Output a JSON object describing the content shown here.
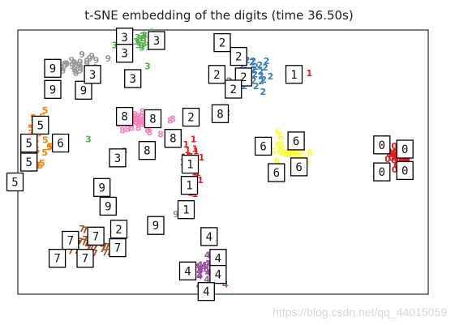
{
  "chart_data": {
    "type": "scatter",
    "title": "t-SNE embedding of the digits (time 36.50s)",
    "xlabel": "",
    "ylabel": "",
    "xlim": [
      0,
      100
    ],
    "ylim": [
      0,
      100
    ],
    "ticks": "none",
    "grid": false,
    "legend": "none",
    "clusters": [
      {
        "label": "0",
        "color": "#e41a1c",
        "center": [
          92.4,
          51.8
        ],
        "spread": [
          3.0,
          5.0
        ],
        "count": 36
      },
      {
        "label": "1",
        "color": "#e41a1c",
        "center": [
          42.3,
          48.0
        ],
        "spread": [
          1.8,
          8.0
        ],
        "count": 30
      },
      {
        "label": "2",
        "color": "#377eb8",
        "center": [
          56.6,
          83.2
        ],
        "spread": [
          4.0,
          4.5
        ],
        "count": 32
      },
      {
        "label": "3",
        "color": "#4daf4a",
        "center": [
          30.6,
          95.5
        ],
        "spread": [
          4.5,
          2.3
        ],
        "count": 24
      },
      {
        "label": "4",
        "color": "#984ea3",
        "center": [
          46.8,
          9.3
        ],
        "spread": [
          4.0,
          4.5
        ],
        "count": 30
      },
      {
        "label": "5",
        "color": "#ff7f00",
        "center": [
          5.3,
          56.0
        ],
        "spread": [
          2.0,
          9.0
        ],
        "count": 30
      },
      {
        "label": "6",
        "color": "#ffff33",
        "center": [
          66.9,
          54.1
        ],
        "spread": [
          4.0,
          4.5
        ],
        "count": 30
      },
      {
        "label": "7",
        "color": "#a65628",
        "center": [
          17.2,
          19.0
        ],
        "spread": [
          5.0,
          4.0
        ],
        "count": 30
      },
      {
        "label": "8",
        "color": "#f781bf",
        "center": [
          30.6,
          64.3
        ],
        "spread": [
          5.5,
          3.5
        ],
        "count": 32
      },
      {
        "label": "9",
        "color": "#999999",
        "center": [
          14.0,
          86.7
        ],
        "spread": [
          4.5,
          3.0
        ],
        "count": 26
      }
    ],
    "stray_labels": [
      {
        "label": "1",
        "color": "#e41a1c",
        "x": 71.0,
        "y": 83.5
      },
      {
        "label": "5",
        "color": "#ff7f00",
        "x": 4.5,
        "y": 66.0
      },
      {
        "label": "3",
        "color": "#4daf4a",
        "x": 17.2,
        "y": 58.5
      },
      {
        "label": "3",
        "color": "#4daf4a",
        "x": 26.0,
        "y": 54.0
      },
      {
        "label": "3",
        "color": "#4daf4a",
        "x": 31.6,
        "y": 86.0
      },
      {
        "label": "9",
        "color": "#999999",
        "x": 22.0,
        "y": 89.0
      },
      {
        "label": "9",
        "color": "#999999",
        "x": 38.5,
        "y": 30.0
      },
      {
        "label": "2",
        "color": "#377eb8",
        "x": 51.0,
        "y": 68.5
      },
      {
        "label": "8",
        "color": "#f781bf",
        "x": 37.0,
        "y": 58.0
      }
    ],
    "thumbnails": [
      {
        "digit": "3",
        "x": 26.0,
        "y": 97.3
      },
      {
        "digit": "3",
        "x": 33.8,
        "y": 96.0
      },
      {
        "digit": "3",
        "x": 26.0,
        "y": 91.2
      },
      {
        "digit": "3",
        "x": 28.0,
        "y": 81.6
      },
      {
        "digit": "9",
        "x": 8.5,
        "y": 85.5
      },
      {
        "digit": "9",
        "x": 8.5,
        "y": 77.5
      },
      {
        "digit": "9",
        "x": 16.0,
        "y": 77.2
      },
      {
        "digit": "3",
        "x": 18.2,
        "y": 83.2
      },
      {
        "digit": "2",
        "x": 49.8,
        "y": 95.2
      },
      {
        "digit": "2",
        "x": 53.8,
        "y": 90.0
      },
      {
        "digit": "2",
        "x": 48.5,
        "y": 83.2
      },
      {
        "digit": "2",
        "x": 55.0,
        "y": 82.2
      },
      {
        "digit": "2",
        "x": 52.5,
        "y": 77.6
      },
      {
        "digit": "1",
        "x": 67.3,
        "y": 83.2
      },
      {
        "digit": "8",
        "x": 26.0,
        "y": 67.3
      },
      {
        "digit": "8",
        "x": 32.9,
        "y": 66.4
      },
      {
        "digit": "2",
        "x": 42.2,
        "y": 67.0
      },
      {
        "digit": "8",
        "x": 49.3,
        "y": 68.3
      },
      {
        "digit": "8",
        "x": 37.8,
        "y": 59.0
      },
      {
        "digit": "8",
        "x": 31.5,
        "y": 54.4
      },
      {
        "digit": "3",
        "x": 24.3,
        "y": 51.6
      },
      {
        "digit": "5",
        "x": 5.5,
        "y": 64.0
      },
      {
        "digit": "5",
        "x": 2.7,
        "y": 57.2
      },
      {
        "digit": "6",
        "x": 10.4,
        "y": 57.2
      },
      {
        "digit": "5",
        "x": 2.7,
        "y": 50.0
      },
      {
        "digit": "5",
        "x": -0.7,
        "y": 42.5
      },
      {
        "digit": "6",
        "x": 59.8,
        "y": 56.0
      },
      {
        "digit": "6",
        "x": 67.8,
        "y": 58.0
      },
      {
        "digit": "6",
        "x": 68.5,
        "y": 48.2
      },
      {
        "digit": "6",
        "x": 63.0,
        "y": 46.0
      },
      {
        "digit": "0",
        "x": 88.7,
        "y": 56.5
      },
      {
        "digit": "0",
        "x": 94.3,
        "y": 54.9
      },
      {
        "digit": "0",
        "x": 88.7,
        "y": 46.3
      },
      {
        "digit": "0",
        "x": 94.3,
        "y": 46.8
      },
      {
        "digit": "1",
        "x": 42.0,
        "y": 49.2
      },
      {
        "digit": "1",
        "x": 41.8,
        "y": 41.2
      },
      {
        "digit": "1",
        "x": 41.0,
        "y": 32.0
      },
      {
        "digit": "9",
        "x": 20.5,
        "y": 40.4
      },
      {
        "digit": "9",
        "x": 22.0,
        "y": 33.3
      },
      {
        "digit": "2",
        "x": 24.6,
        "y": 24.6
      },
      {
        "digit": "7",
        "x": 19.0,
        "y": 22.0
      },
      {
        "digit": "7",
        "x": 12.8,
        "y": 20.4
      },
      {
        "digit": "7",
        "x": 24.3,
        "y": 17.6
      },
      {
        "digit": "7",
        "x": 9.6,
        "y": 13.6
      },
      {
        "digit": "7",
        "x": 16.4,
        "y": 13.6
      },
      {
        "digit": "9",
        "x": 33.6,
        "y": 26.0
      },
      {
        "digit": "4",
        "x": 46.6,
        "y": 21.8
      },
      {
        "digit": "4",
        "x": 48.8,
        "y": 13.6
      },
      {
        "digit": "4",
        "x": 41.4,
        "y": 8.8
      },
      {
        "digit": "4",
        "x": 48.8,
        "y": 7.5
      },
      {
        "digit": "4",
        "x": 45.9,
        "y": 1.0
      }
    ]
  },
  "watermark": "https://blog.csdn.net/qq_44015059"
}
